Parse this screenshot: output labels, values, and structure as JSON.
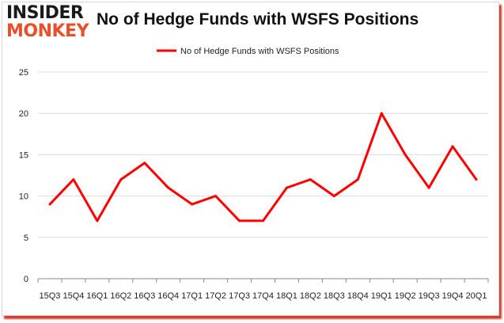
{
  "logo": {
    "line1": "INSIDER",
    "line2": "MONKEY"
  },
  "colors": {
    "line": "#ff0000",
    "frame_shadow": "#d23b2f",
    "grid": "#dcdcdc",
    "axis": "#888888"
  },
  "chart_data": {
    "type": "line",
    "title": "No of Hedge Funds with WSFS Positions",
    "xlabel": "",
    "ylabel": "",
    "legend": "top-center",
    "grid": true,
    "categories": [
      "15Q3",
      "15Q4",
      "16Q1",
      "16Q2",
      "16Q3",
      "16Q4",
      "17Q1",
      "17Q2",
      "17Q3",
      "17Q4",
      "18Q1",
      "18Q2",
      "18Q3",
      "18Q4",
      "19Q1",
      "19Q2",
      "19Q3",
      "19Q4",
      "20Q1"
    ],
    "series": [
      {
        "name": "No of Hedge Funds with WSFS Positions",
        "values": [
          9,
          12,
          7,
          12,
          14,
          11,
          9,
          10,
          7,
          7,
          11,
          12,
          10,
          12,
          20,
          15,
          11,
          16,
          12
        ]
      }
    ],
    "ylim": [
      0,
      25
    ],
    "yticks": [
      0,
      5,
      10,
      15,
      20,
      25
    ]
  }
}
